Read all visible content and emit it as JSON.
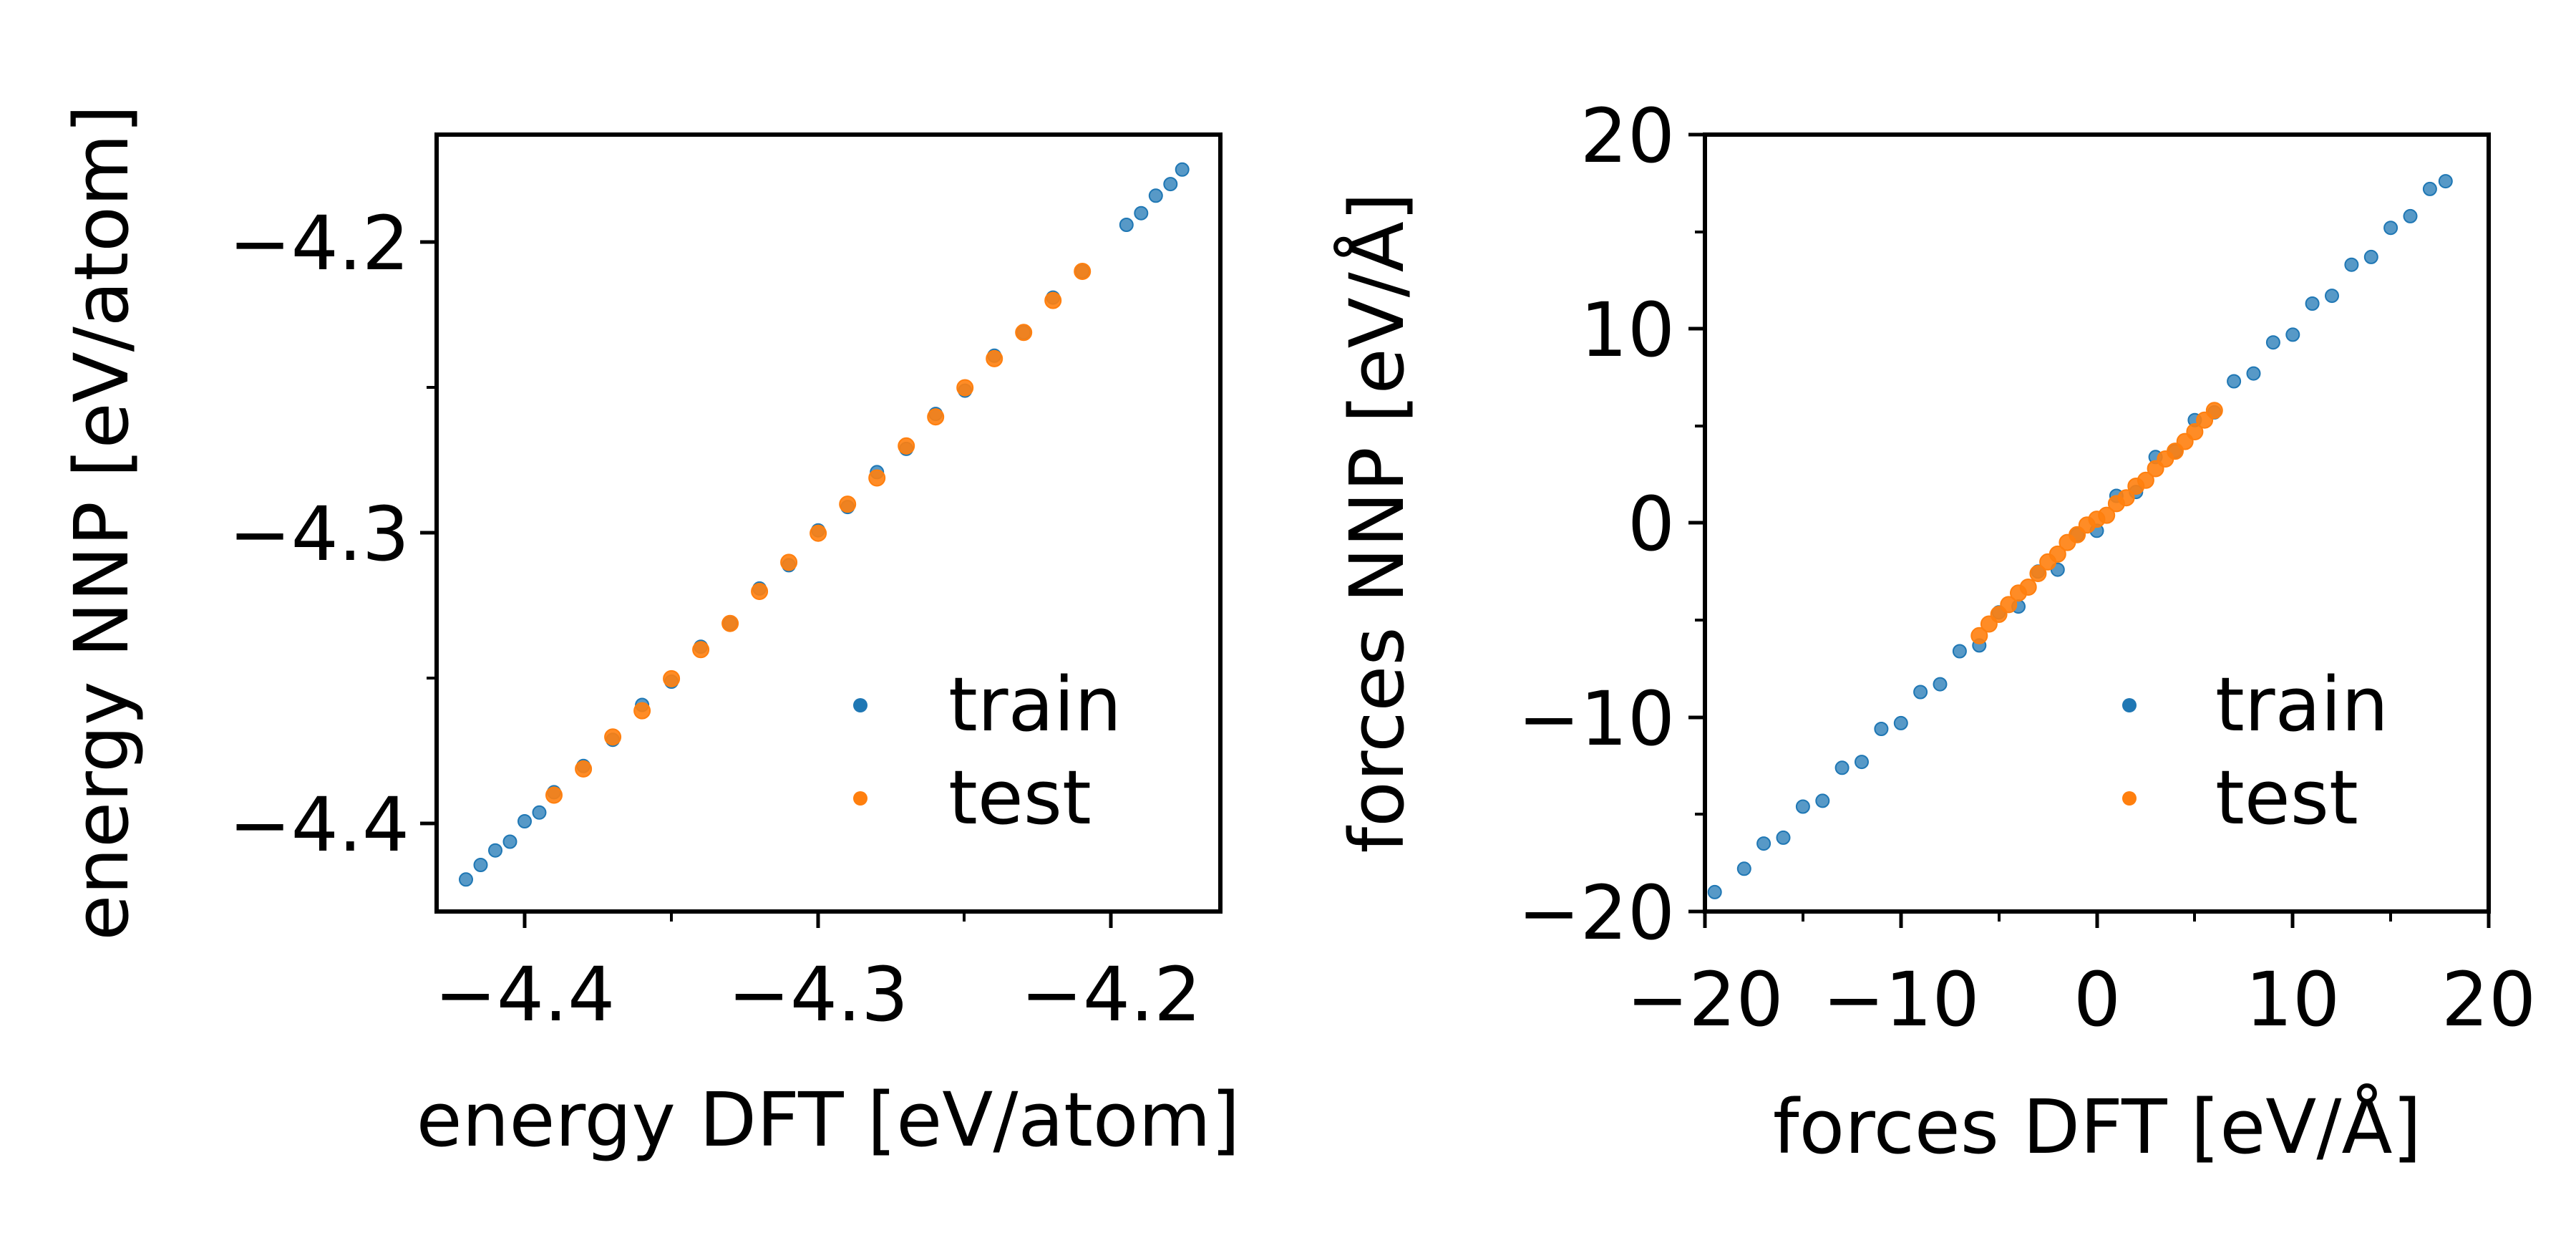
{
  "colors": {
    "train": "#1f77b4",
    "test": "#ff7f0e",
    "axes": "#000000",
    "background": "#ffffff"
  },
  "chart_data": [
    {
      "type": "scatter",
      "xlabel": "energy DFT [eV/atom]",
      "ylabel": "energy NNP [eV/atom]",
      "xlim": [
        -4.43,
        -4.163
      ],
      "ylim": [
        -4.43,
        -4.163
      ],
      "xticks": [
        -4.4,
        -4.3,
        -4.2
      ],
      "xtick_labels": [
        "−4.4",
        "−4.3",
        "−4.2"
      ],
      "yticks": [
        -4.4,
        -4.3,
        -4.2
      ],
      "ytick_labels": [
        "−4.4",
        "−4.3",
        "−4.2"
      ],
      "minor_ticks": [
        -4.35,
        -4.25
      ],
      "legend": {
        "position": "lower-right",
        "entries": [
          "train",
          "test"
        ]
      },
      "series": [
        {
          "name": "train",
          "color": "#1f77b4",
          "x_range": [
            -4.42,
            -4.175
          ],
          "points": [
            [
              -4.42,
              -4.419
            ],
            [
              -4.415,
              -4.414
            ],
            [
              -4.41,
              -4.409
            ],
            [
              -4.405,
              -4.406
            ],
            [
              -4.4,
              -4.399
            ],
            [
              -4.395,
              -4.396
            ],
            [
              -4.39,
              -4.389
            ],
            [
              -4.38,
              -4.38
            ],
            [
              -4.37,
              -4.371
            ],
            [
              -4.36,
              -4.359
            ],
            [
              -4.35,
              -4.351
            ],
            [
              -4.34,
              -4.339
            ],
            [
              -4.33,
              -4.331
            ],
            [
              -4.32,
              -4.319
            ],
            [
              -4.31,
              -4.311
            ],
            [
              -4.3,
              -4.299
            ],
            [
              -4.29,
              -4.291
            ],
            [
              -4.28,
              -4.279
            ],
            [
              -4.27,
              -4.271
            ],
            [
              -4.26,
              -4.259
            ],
            [
              -4.25,
              -4.251
            ],
            [
              -4.24,
              -4.239
            ],
            [
              -4.23,
              -4.231
            ],
            [
              -4.22,
              -4.219
            ],
            [
              -4.21,
              -4.21
            ],
            [
              -4.195,
              -4.194
            ],
            [
              -4.19,
              -4.19
            ],
            [
              -4.185,
              -4.184
            ],
            [
              -4.18,
              -4.18
            ],
            [
              -4.176,
              -4.175
            ]
          ]
        },
        {
          "name": "test",
          "color": "#ff7f0e",
          "x_range": [
            -4.39,
            -4.21
          ],
          "points": [
            [
              -4.39,
              -4.39
            ],
            [
              -4.38,
              -4.381
            ],
            [
              -4.37,
              -4.37
            ],
            [
              -4.36,
              -4.361
            ],
            [
              -4.35,
              -4.35
            ],
            [
              -4.34,
              -4.34
            ],
            [
              -4.33,
              -4.331
            ],
            [
              -4.32,
              -4.32
            ],
            [
              -4.31,
              -4.31
            ],
            [
              -4.3,
              -4.3
            ],
            [
              -4.29,
              -4.29
            ],
            [
              -4.28,
              -4.281
            ],
            [
              -4.27,
              -4.27
            ],
            [
              -4.26,
              -4.26
            ],
            [
              -4.25,
              -4.25
            ],
            [
              -4.24,
              -4.24
            ],
            [
              -4.23,
              -4.231
            ],
            [
              -4.22,
              -4.22
            ],
            [
              -4.21,
              -4.21
            ]
          ]
        }
      ]
    },
    {
      "type": "scatter",
      "xlabel": "forces DFT [eV/Å]",
      "ylabel": "forces NNP [eV/Å]",
      "xlim": [
        -20,
        20
      ],
      "ylim": [
        -20,
        20
      ],
      "xticks": [
        -20,
        -10,
        0,
        10,
        20
      ],
      "xtick_labels": [
        "−20",
        "−10",
        "0",
        "10",
        "20"
      ],
      "yticks": [
        -20,
        -10,
        0,
        10,
        20
      ],
      "ytick_labels": [
        "−20",
        "−10",
        "0",
        "10",
        "20"
      ],
      "minor_ticks": [
        -15,
        -5,
        5,
        15
      ],
      "legend": {
        "position": "lower-right",
        "entries": [
          "train",
          "test"
        ]
      },
      "series": [
        {
          "name": "train",
          "color": "#1f77b4",
          "x_range": [
            -19.5,
            18
          ],
          "points": [
            [
              -19.5,
              -19.0
            ],
            [
              -18.0,
              -17.8
            ],
            [
              -17.0,
              -16.5
            ],
            [
              -16.0,
              -16.2
            ],
            [
              -15.0,
              -14.6
            ],
            [
              -14.0,
              -14.3
            ],
            [
              -13.0,
              -12.6
            ],
            [
              -12.0,
              -12.3
            ],
            [
              -11.0,
              -10.6
            ],
            [
              -10.0,
              -10.3
            ],
            [
              -9.0,
              -8.7
            ],
            [
              -8.0,
              -8.3
            ],
            [
              -7.0,
              -6.6
            ],
            [
              -6.0,
              -6.3
            ],
            [
              -5.0,
              -4.6
            ],
            [
              -4.0,
              -4.3
            ],
            [
              -3.0,
              -2.5
            ],
            [
              -2.0,
              -2.4
            ],
            [
              -1.0,
              -0.6
            ],
            [
              0.0,
              -0.4
            ],
            [
              1.0,
              1.4
            ],
            [
              2.0,
              1.6
            ],
            [
              3.0,
              3.4
            ],
            [
              4.0,
              3.7
            ],
            [
              5.0,
              5.3
            ],
            [
              6.0,
              5.7
            ],
            [
              7.0,
              7.3
            ],
            [
              8.0,
              7.7
            ],
            [
              9.0,
              9.3
            ],
            [
              10.0,
              9.7
            ],
            [
              11.0,
              11.3
            ],
            [
              12.0,
              11.7
            ],
            [
              13.0,
              13.3
            ],
            [
              14.0,
              13.7
            ],
            [
              15.0,
              15.2
            ],
            [
              16.0,
              15.8
            ],
            [
              17.0,
              17.2
            ],
            [
              17.8,
              17.6
            ]
          ]
        },
        {
          "name": "test",
          "color": "#ff7f0e",
          "x_range": [
            -6,
            6
          ],
          "points": [
            [
              -6.0,
              -5.8
            ],
            [
              -5.5,
              -5.2
            ],
            [
              -5.0,
              -4.7
            ],
            [
              -4.5,
              -4.2
            ],
            [
              -4.0,
              -3.6
            ],
            [
              -3.5,
              -3.3
            ],
            [
              -3.0,
              -2.6
            ],
            [
              -2.5,
              -2.0
            ],
            [
              -2.0,
              -1.6
            ],
            [
              -1.5,
              -1.0
            ],
            [
              -1.0,
              -0.6
            ],
            [
              -0.5,
              -0.1
            ],
            [
              0.0,
              0.2
            ],
            [
              0.5,
              0.4
            ],
            [
              1.0,
              1.0
            ],
            [
              1.5,
              1.3
            ],
            [
              2.0,
              1.9
            ],
            [
              2.5,
              2.2
            ],
            [
              3.0,
              2.8
            ],
            [
              3.5,
              3.3
            ],
            [
              4.0,
              3.7
            ],
            [
              4.5,
              4.2
            ],
            [
              5.0,
              4.7
            ],
            [
              5.5,
              5.3
            ],
            [
              6.0,
              5.8
            ]
          ]
        }
      ]
    }
  ]
}
